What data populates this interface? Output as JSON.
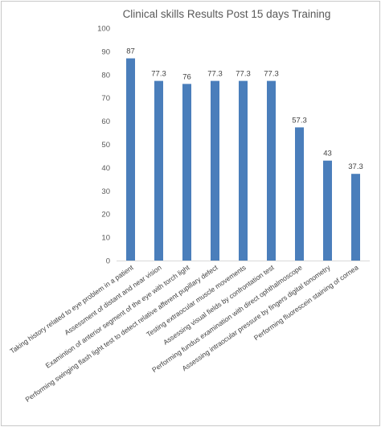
{
  "chart_data": {
    "type": "bar",
    "title": "Clinical skills Results Post 15 days Training",
    "xlabel": "",
    "ylabel": "",
    "ylim": [
      0,
      100
    ],
    "yticks": [
      0,
      10,
      20,
      30,
      40,
      50,
      60,
      70,
      80,
      90,
      100
    ],
    "grid": false,
    "legend": "none",
    "bar_color": "#4a7ebb",
    "categories": [
      "Taking history related to eye problem in a patient",
      "Assessment of distant and near vision",
      "Examintion of anterior segment of the eye with torch light",
      "Performing swinging flash light test to detect relative afferent pupillary defect",
      "Testing extraocular muscle movements",
      "Assessing visual fields by confrontation test",
      "Performing fundus examination with direct ophthalmoscope",
      "Assessing intraocular pressure by fingers digital tonometry",
      "Performing fluorescein staining of cornea"
    ],
    "values": [
      87,
      77.3,
      76,
      77.3,
      77.3,
      77.3,
      57.3,
      43,
      37.3
    ],
    "data_labels": [
      "87",
      "77.3",
      "76",
      "77.3",
      "77.3",
      "77.3",
      "57.3",
      "43",
      "37.3"
    ]
  }
}
